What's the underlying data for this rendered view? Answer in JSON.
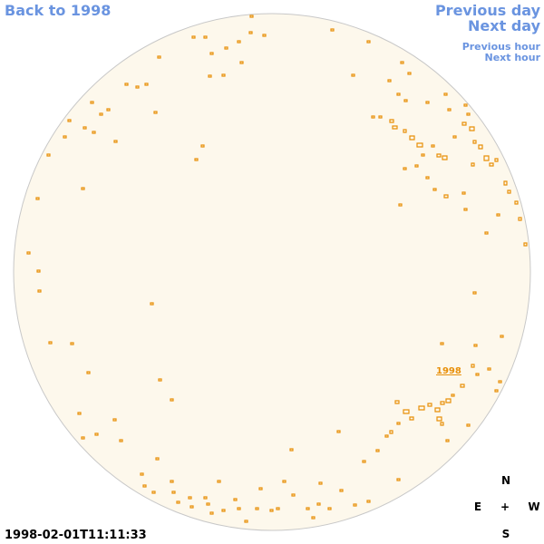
{
  "nav": {
    "back": "Back to 1998",
    "previous_day": "Previous day",
    "next_day": "Next day",
    "previous_hour": "Previous hour",
    "next_hour": "Next hour"
  },
  "image": {
    "year_link": "1998",
    "timestamp": "1998-02-01T11:11:33"
  },
  "compass": {
    "north": "N",
    "east": "E",
    "center": "+",
    "west": "W",
    "south": "S"
  }
}
